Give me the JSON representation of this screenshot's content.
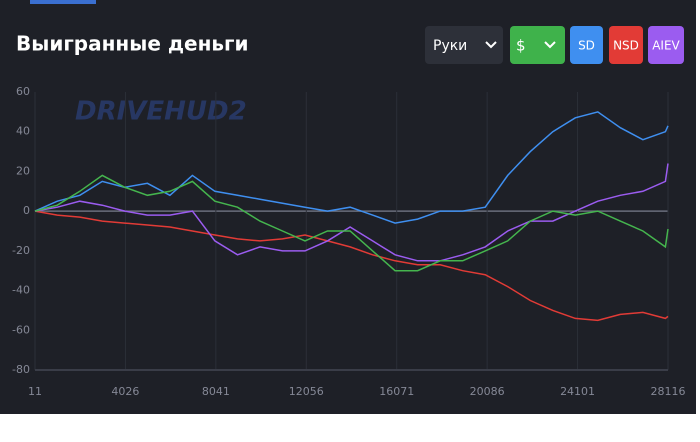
{
  "controls": {
    "range": "Руки",
    "currency": "$"
  },
  "watermark": "DRIVEHUD2",
  "chart_data": {
    "type": "line",
    "title": "Выигранные деньги",
    "x": [
      11,
      1000,
      2000,
      3000,
      4000,
      5000,
      6000,
      7000,
      8000,
      9000,
      10000,
      11000,
      12000,
      13000,
      14000,
      15000,
      16000,
      17000,
      18000,
      19000,
      20000,
      21000,
      22000,
      23000,
      24000,
      25000,
      26000,
      27000,
      28000,
      28116
    ],
    "xlim": [
      11,
      28116
    ],
    "xticks": [
      11,
      4026,
      8041,
      12056,
      16071,
      20086,
      24101,
      28116
    ],
    "ylim": [
      -80,
      60
    ],
    "yticks": [
      -80,
      -60,
      -40,
      -20,
      0,
      20,
      40,
      60
    ],
    "grid": true,
    "series": [
      {
        "name": "SD",
        "color": "#3f8ff0",
        "values": [
          0,
          5,
          8,
          15,
          12,
          14,
          8,
          18,
          10,
          8,
          6,
          4,
          2,
          0,
          2,
          -2,
          -6,
          -4,
          0,
          0,
          2,
          18,
          30,
          40,
          47,
          50,
          42,
          36,
          40,
          43
        ]
      },
      {
        "name": "NSD",
        "color": "#e23b36",
        "values": [
          0,
          -2,
          -3,
          -5,
          -6,
          -7,
          -8,
          -10,
          -12,
          -14,
          -15,
          -14,
          -12,
          -15,
          -18,
          -22,
          -25,
          -27,
          -27,
          -30,
          -32,
          -38,
          -45,
          -50,
          -54,
          -55,
          -52,
          -51,
          -54,
          -53
        ]
      },
      {
        "name": "AIEV",
        "color": "#9b5cf0",
        "values": [
          0,
          2,
          5,
          3,
          0,
          -2,
          -2,
          0,
          -15,
          -22,
          -18,
          -20,
          -20,
          -15,
          -8,
          -15,
          -22,
          -25,
          -25,
          -22,
          -18,
          -10,
          -5,
          -5,
          0,
          5,
          8,
          10,
          15,
          24
        ]
      },
      {
        "color": "#45b54e",
        "values": [
          0,
          3,
          10,
          18,
          12,
          8,
          10,
          15,
          5,
          2,
          -5,
          -10,
          -15,
          -10,
          -10,
          -20,
          -30,
          -30,
          -25,
          -25,
          -20,
          -15,
          -5,
          0,
          -2,
          0,
          -5,
          -10,
          -18,
          -9
        ]
      }
    ]
  }
}
